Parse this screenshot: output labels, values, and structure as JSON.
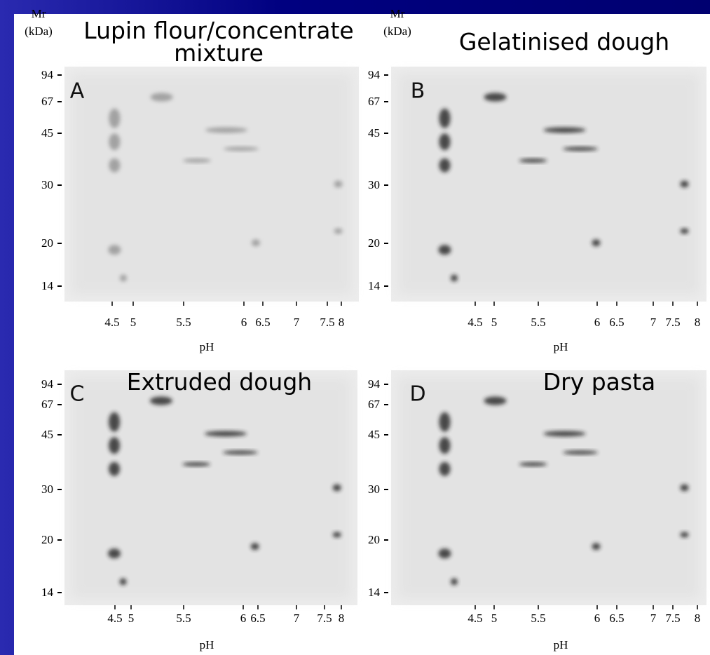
{
  "panels": [
    {
      "letter": "A",
      "title": "Lupin flour/concentrate mixture",
      "y_label": "Mr",
      "y_unit": "(kDa)",
      "y_ticks": [
        "94",
        "67",
        "45",
        "30",
        "20",
        "14"
      ],
      "x_ticks": [
        "4.5",
        "5",
        "5.5",
        "6",
        "6.5",
        "7",
        "7.5",
        "8"
      ],
      "x_label": "pH"
    },
    {
      "letter": "B",
      "title": "Gelatinised dough",
      "y_label": "Mr",
      "y_unit": "(kDa)",
      "y_ticks": [
        "94",
        "67",
        "45",
        "30",
        "20",
        "14"
      ],
      "x_ticks": [
        "4.5",
        "5",
        "5.5",
        "6",
        "6.5",
        "7",
        "7.5",
        "8"
      ],
      "x_label": "pH"
    },
    {
      "letter": "C",
      "title": "Extruded dough",
      "y_ticks": [
        "94",
        "67",
        "45",
        "30",
        "20",
        "14"
      ],
      "x_ticks": [
        "4.5",
        "5",
        "5.5",
        "6",
        "6.5",
        "7",
        "7.5",
        "8"
      ],
      "x_label": "pH"
    },
    {
      "letter": "D",
      "title": "Dry pasta",
      "y_ticks": [
        "94",
        "67",
        "45",
        "30",
        "20",
        "14"
      ],
      "x_ticks": [
        "4.5",
        "5",
        "5.5",
        "6",
        "6.5",
        "7",
        "7.5",
        "8"
      ],
      "x_label": "pH"
    }
  ]
}
